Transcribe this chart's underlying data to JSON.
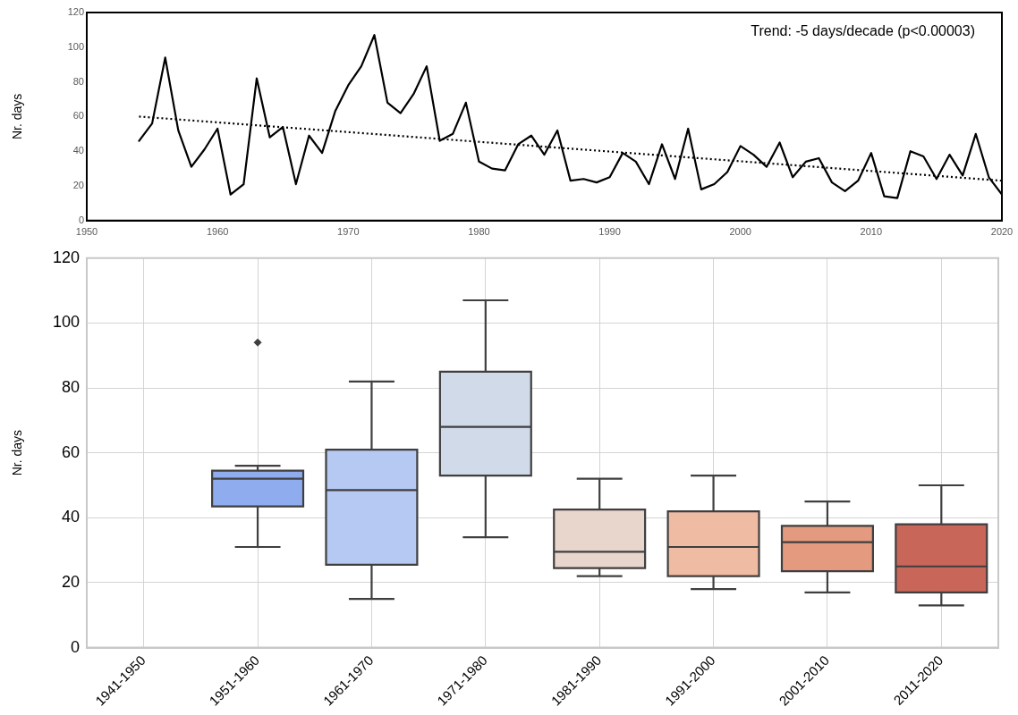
{
  "chart_data": [
    {
      "type": "line",
      "ylabel": "Nr. days",
      "annotations": [
        "Trend: -5 days/decade (p<0.00003)"
      ],
      "x": [
        1954,
        1955,
        1956,
        1957,
        1958,
        1959,
        1960,
        1961,
        1962,
        1963,
        1964,
        1965,
        1966,
        1967,
        1968,
        1969,
        1970,
        1971,
        1972,
        1973,
        1974,
        1975,
        1976,
        1977,
        1978,
        1979,
        1980,
        1981,
        1982,
        1983,
        1984,
        1985,
        1986,
        1987,
        1988,
        1989,
        1990,
        1991,
        1992,
        1993,
        1994,
        1995,
        1996,
        1997,
        1998,
        1999,
        2000,
        2001,
        2002,
        2003,
        2004,
        2005,
        2006,
        2007,
        2008,
        2009,
        2010,
        2011,
        2012,
        2013,
        2014,
        2015,
        2016,
        2017,
        2018,
        2019,
        2020
      ],
      "series": [
        {
          "color": "#000000",
          "line_style": "solid",
          "values": [
            46,
            56,
            94,
            52,
            31,
            41,
            53,
            15,
            21,
            82,
            48,
            54,
            21,
            49,
            39,
            63,
            78,
            89,
            107,
            68,
            62,
            73,
            89,
            46,
            50,
            68,
            34,
            30,
            29,
            44,
            49,
            38,
            52,
            23,
            24,
            22,
            25,
            39,
            34,
            21,
            44,
            24,
            53,
            18,
            21,
            28,
            43,
            38,
            31,
            45,
            25,
            34,
            36,
            22,
            17,
            23,
            39,
            14,
            13,
            40,
            37,
            24,
            38,
            26,
            50,
            25,
            15
          ]
        },
        {
          "type": "line",
          "x": [
            1954,
            2020
          ],
          "color": "#000000",
          "line_style": "dotted",
          "values": [
            60,
            23
          ]
        }
      ],
      "xlim": [
        1950,
        2020
      ],
      "ylim": [
        0,
        120
      ],
      "xticks": [
        1950,
        1960,
        1970,
        1980,
        1990,
        2000,
        2010,
        2020
      ],
      "yticks": [
        0,
        20,
        40,
        60,
        80,
        100,
        120
      ],
      "grid": false,
      "legend": false,
      "marker": "none"
    },
    {
      "type": "box",
      "ylabel": "Nr. days",
      "categories": [
        "1941-1950",
        "1951-1960",
        "1961-1970",
        "1971-1980",
        "1981-1990",
        "1991-2000",
        "2001-2010",
        "2011-2020"
      ],
      "boxes": [
        null,
        {
          "low": 31,
          "q1": 43.5,
          "median": 52,
          "q3": 54.5,
          "high": 56,
          "outliers": [
            94
          ]
        },
        {
          "low": 15,
          "q1": 25.5,
          "median": 48.5,
          "q3": 61,
          "high": 82
        },
        {
          "low": 34,
          "q1": 53,
          "median": 68,
          "q3": 85,
          "high": 107
        },
        {
          "low": 22,
          "q1": 24.5,
          "median": 29.5,
          "q3": 42.5,
          "high": 52
        },
        {
          "low": 18,
          "q1": 22,
          "median": 31,
          "q3": 42,
          "high": 53
        },
        {
          "low": 17,
          "q1": 23.5,
          "median": 32.5,
          "q3": 37.5,
          "high": 45
        },
        {
          "low": 13,
          "q1": 17,
          "median": 25,
          "q3": 38,
          "high": 50
        }
      ],
      "colors": [
        null,
        "#8fadee",
        "#b5c9f3",
        "#d1dae9",
        "#e8d5cc",
        "#efbba3",
        "#e49a7f",
        "#c9665a"
      ],
      "ylim": [
        0,
        120
      ],
      "yticks": [
        0,
        20,
        40,
        60,
        80,
        100,
        120
      ],
      "grid": true,
      "legend": false
    }
  ]
}
